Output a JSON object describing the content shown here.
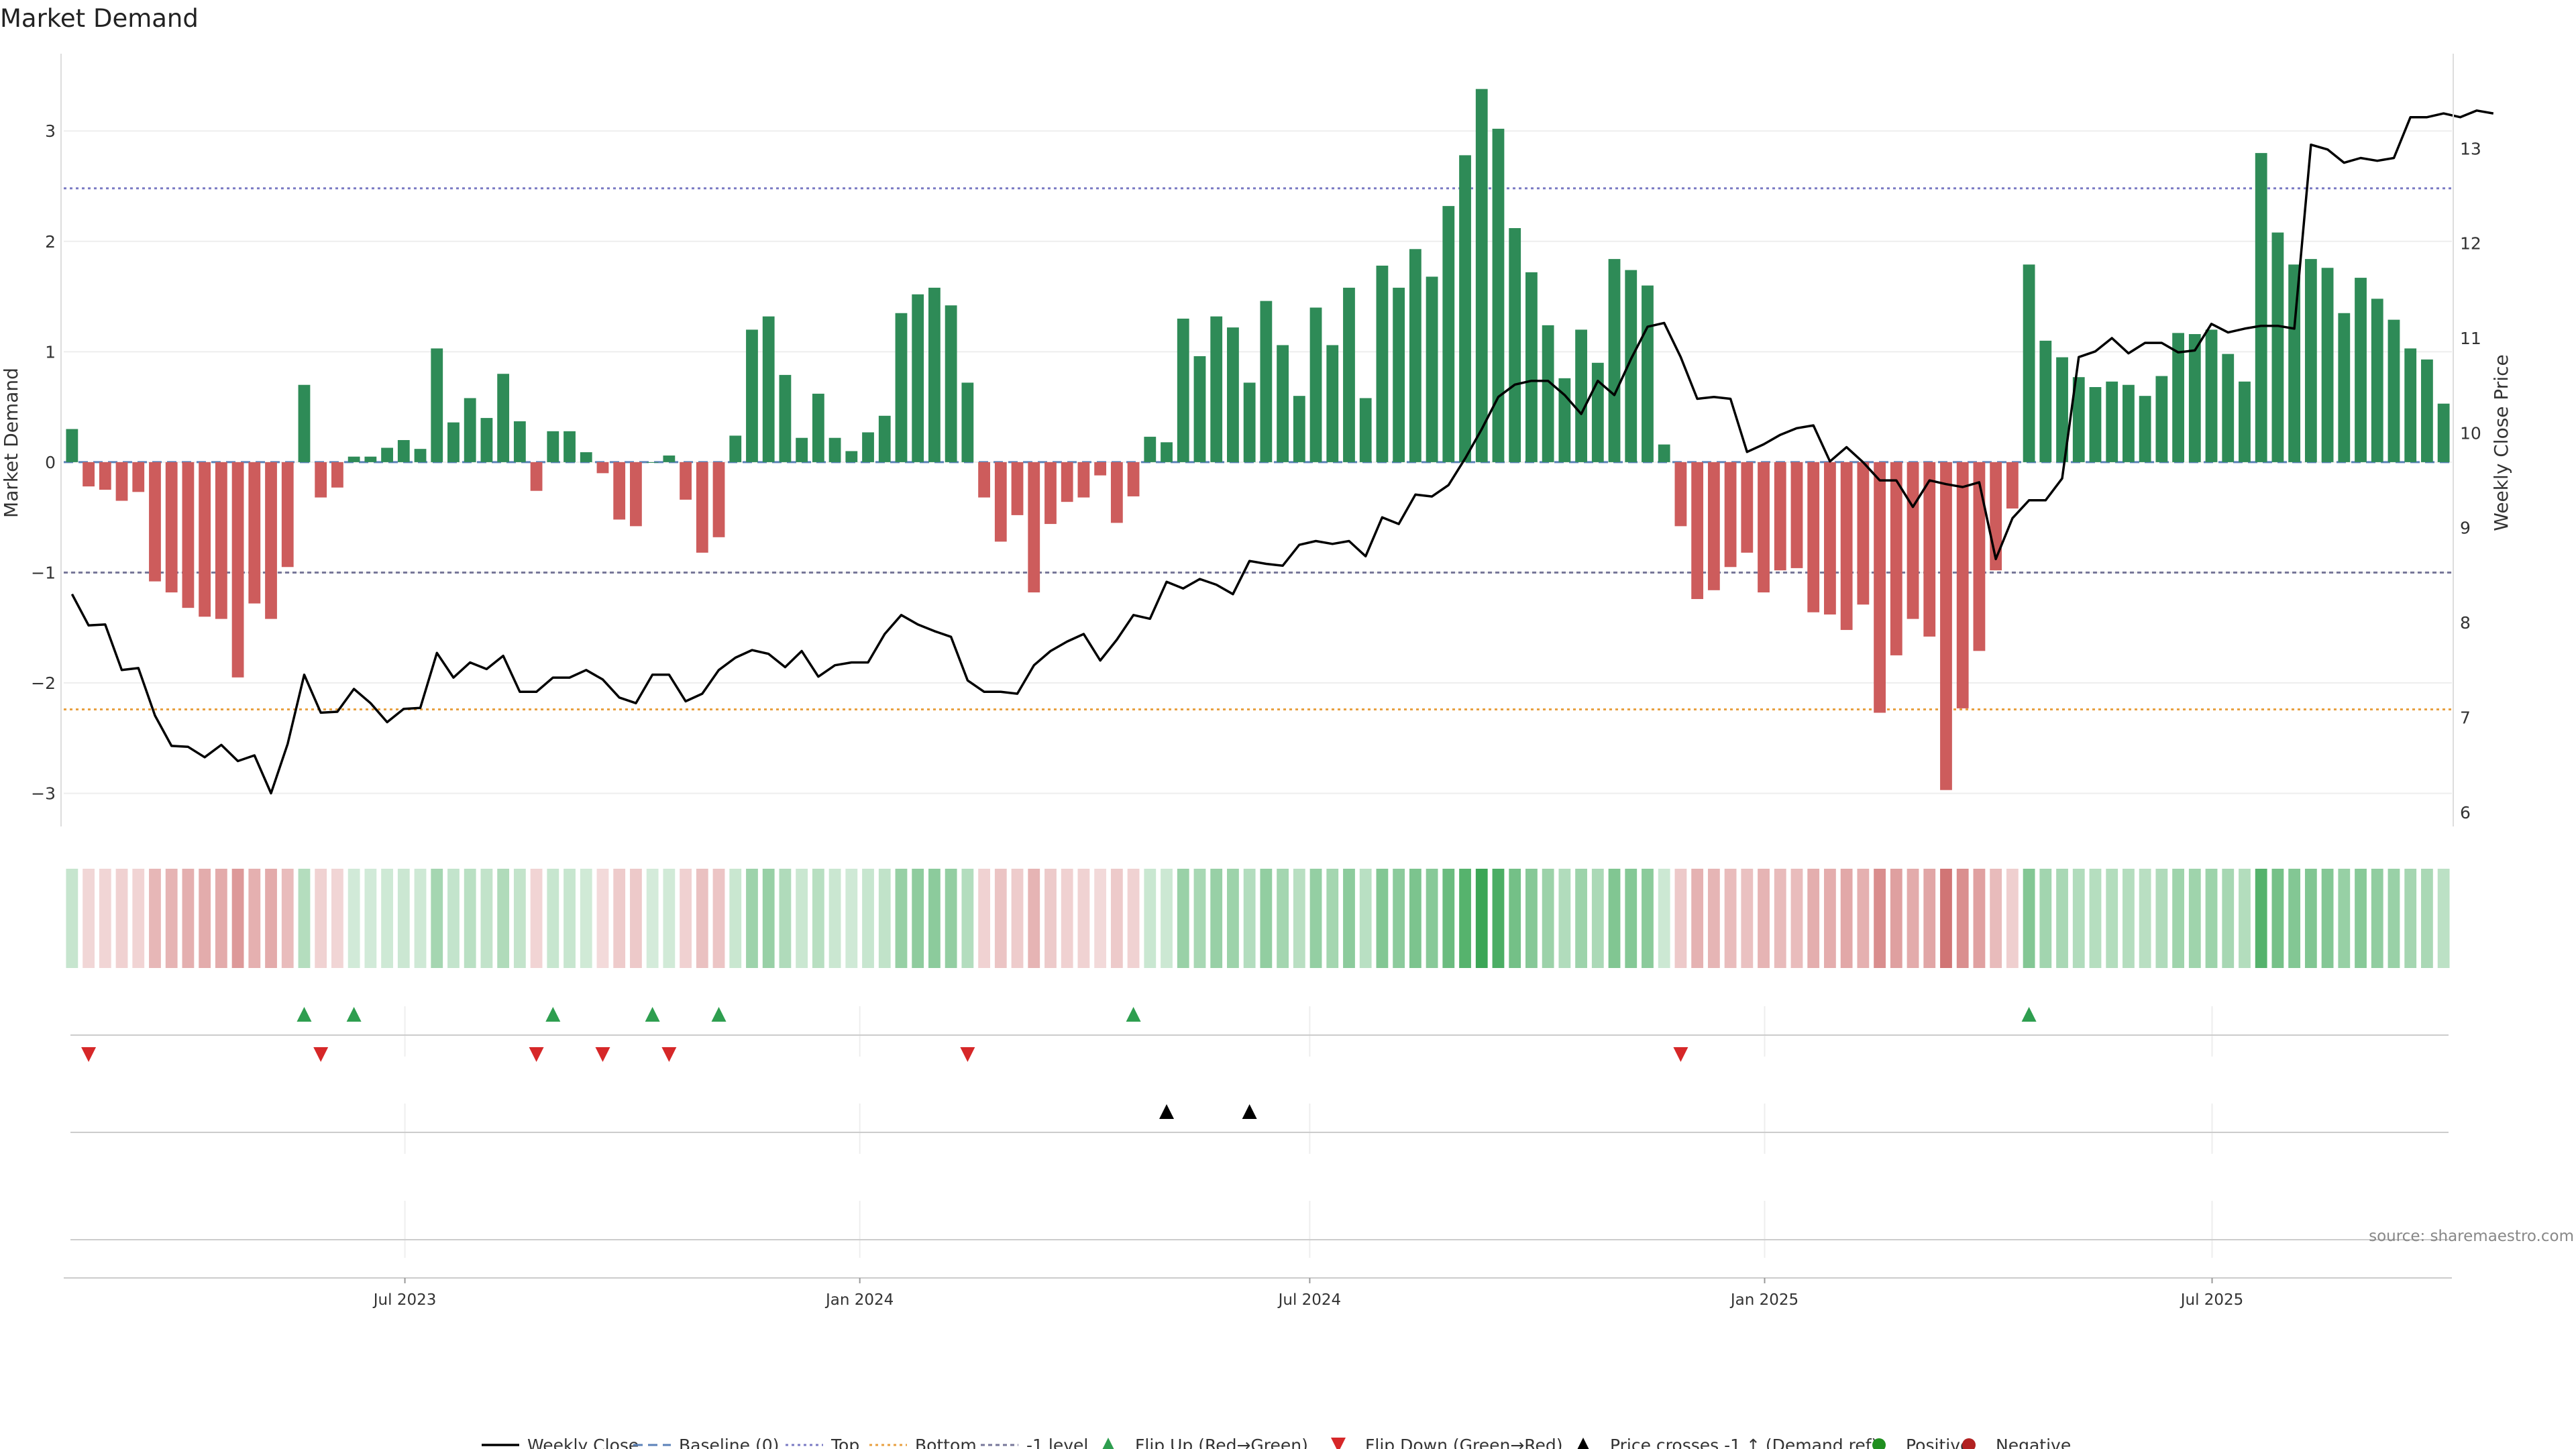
{
  "chart_data": {
    "type": "bar",
    "title": "Market Demand",
    "ylabel_left": "Market Demand",
    "ylabel_right": "Weekly Close Price",
    "ylim_left": [
      -3.3,
      3.7
    ],
    "yticks_left": [
      -3,
      -2,
      -1,
      0,
      1,
      2,
      3
    ],
    "ylim_right": [
      5.85,
      14.0
    ],
    "yticks_right": [
      6,
      7,
      8,
      9,
      10,
      11,
      12,
      13
    ],
    "levels": {
      "top": 2.48,
      "bottom": -2.24,
      "minus_one": -1,
      "baseline": 0
    },
    "demand": [
      0.3,
      -0.22,
      -0.25,
      -0.35,
      -0.27,
      -1.08,
      -1.18,
      -1.32,
      -1.4,
      -1.42,
      -1.95,
      -1.28,
      -1.42,
      -0.95,
      0.7,
      -0.32,
      -0.23,
      0.05,
      0.05,
      0.13,
      0.2,
      0.12,
      1.03,
      0.36,
      0.58,
      0.4,
      0.8,
      0.37,
      -0.26,
      0.28,
      0.28,
      0.09,
      -0.1,
      -0.52,
      -0.58,
      0.0,
      0.06,
      -0.34,
      -0.82,
      -0.68,
      0.24,
      1.2,
      1.32,
      0.79,
      0.22,
      0.62,
      0.22,
      0.1,
      0.27,
      0.42,
      1.35,
      1.52,
      1.58,
      1.42,
      0.72,
      -0.32,
      -0.72,
      -0.48,
      -1.18,
      -0.56,
      -0.36,
      -0.32,
      -0.12,
      -0.55,
      -0.31,
      0.23,
      0.18,
      1.3,
      0.96,
      1.32,
      1.22,
      0.72,
      1.46,
      1.06,
      0.6,
      1.4,
      1.06,
      1.58,
      0.58,
      1.78,
      1.58,
      1.93,
      1.68,
      2.32,
      2.78,
      3.38,
      3.02,
      2.12,
      1.72,
      1.24,
      0.76,
      1.2,
      0.9,
      1.84,
      1.74,
      1.6,
      0.16,
      -0.58,
      -1.24,
      -1.16,
      -0.95,
      -0.82,
      -1.18,
      -0.98,
      -0.96,
      -1.36,
      -1.38,
      -1.52,
      -1.29,
      -2.27,
      -1.75,
      -1.42,
      -1.58,
      -2.97,
      -2.23,
      -1.71,
      -0.98,
      -0.42,
      1.79,
      1.1,
      0.95,
      0.77,
      0.68,
      0.73,
      0.7,
      0.6,
      0.78,
      1.17,
      1.16,
      1.2,
      0.98,
      0.73,
      2.8,
      2.08,
      1.79,
      1.84,
      1.76,
      1.35,
      1.67,
      1.48,
      1.29,
      1.03,
      0.93,
      0.53
    ],
    "close_price": [
      8.3,
      7.97,
      7.98,
      7.5,
      7.52,
      7.02,
      6.7,
      6.69,
      6.58,
      6.71,
      6.54,
      6.6,
      6.2,
      6.72,
      7.45,
      7.05,
      7.06,
      7.3,
      7.15,
      6.95,
      7.09,
      7.1,
      7.68,
      7.42,
      7.58,
      7.51,
      7.65,
      7.27,
      7.27,
      7.42,
      7.42,
      7.5,
      7.4,
      7.21,
      7.15,
      7.45,
      7.45,
      7.17,
      7.25,
      7.5,
      7.63,
      7.71,
      7.67,
      7.53,
      7.7,
      7.43,
      7.55,
      7.58,
      7.58,
      7.88,
      8.08,
      7.98,
      7.91,
      7.85,
      7.39,
      7.27,
      7.27,
      7.25,
      7.55,
      7.7,
      7.8,
      7.88,
      7.6,
      7.82,
      8.08,
      8.04,
      8.43,
      8.36,
      8.46,
      8.4,
      8.3,
      8.65,
      8.62,
      8.6,
      8.82,
      8.86,
      8.83,
      8.86,
      8.7,
      9.11,
      9.04,
      9.35,
      9.33,
      9.45,
      9.73,
      10.04,
      10.38,
      10.51,
      10.55,
      10.55,
      10.4,
      10.2,
      10.55,
      10.4,
      10.78,
      11.12,
      11.16,
      10.8,
      10.36,
      10.38,
      10.36,
      9.8,
      9.88,
      9.98,
      10.05,
      10.08,
      9.7,
      9.85,
      9.69,
      9.5,
      9.5,
      9.22,
      9.5,
      9.46,
      9.43,
      9.48,
      8.67,
      9.1,
      9.29,
      9.29,
      9.52,
      10.8,
      10.86,
      11.0,
      10.84,
      10.95,
      10.95,
      10.85,
      10.87,
      11.15,
      11.06,
      11.1,
      11.13,
      11.13,
      11.1,
      13.04,
      12.99,
      12.85,
      12.9,
      12.87,
      12.9,
      13.33,
      13.33,
      13.37,
      13.33,
      13.4,
      13.37
    ],
    "x_start_date": "2023-02-13",
    "x_end_date": "2025-10-06",
    "xticks": [
      {
        "date": "2023-07-01",
        "label": "Jul 2023"
      },
      {
        "date": "2024-01-01",
        "label": "Jan 2024"
      },
      {
        "date": "2024-07-01",
        "label": "Jul 2024"
      },
      {
        "date": "2025-01-01",
        "label": "Jan 2025"
      },
      {
        "date": "2025-07-01",
        "label": "Jul 2025"
      }
    ],
    "events": {
      "flip_up": [
        14,
        17,
        29,
        35,
        39,
        64,
        118
      ],
      "flip_down": [
        1,
        15,
        28,
        32,
        36,
        54,
        97
      ],
      "price_cross_up": [
        66,
        71
      ]
    },
    "legend": [
      {
        "key": "weekly_close",
        "label": "Weekly Close"
      },
      {
        "key": "baseline",
        "label": "Baseline (0)"
      },
      {
        "key": "top",
        "label": "Top"
      },
      {
        "key": "bottom",
        "label": "Bottom"
      },
      {
        "key": "minus_one",
        "label": "-1 level"
      },
      {
        "key": "flip_up",
        "label": "Flip Up (Red→Green)"
      },
      {
        "key": "flip_down",
        "label": "Flip Down (Green→Red)"
      },
      {
        "key": "price_cross",
        "label": "Price crosses -1 ↑ (Demand ref)"
      },
      {
        "key": "positive",
        "label": "Positive"
      },
      {
        "key": "negative",
        "label": "Negative"
      }
    ],
    "source": "source: sharemaestro.com"
  },
  "colors": {
    "positive": "#2e8b57",
    "negative": "#cd5c5c",
    "price": "#000000",
    "top": "#7b7bc4",
    "bottom": "#e8a040",
    "minus_one": "#777799",
    "baseline": "#5b82b8",
    "flip_up": "#2e9e4f",
    "flip_down": "#d62728",
    "cross": "#000000",
    "pos_dot": "#1f8f1f",
    "neg_dot": "#b22222"
  }
}
